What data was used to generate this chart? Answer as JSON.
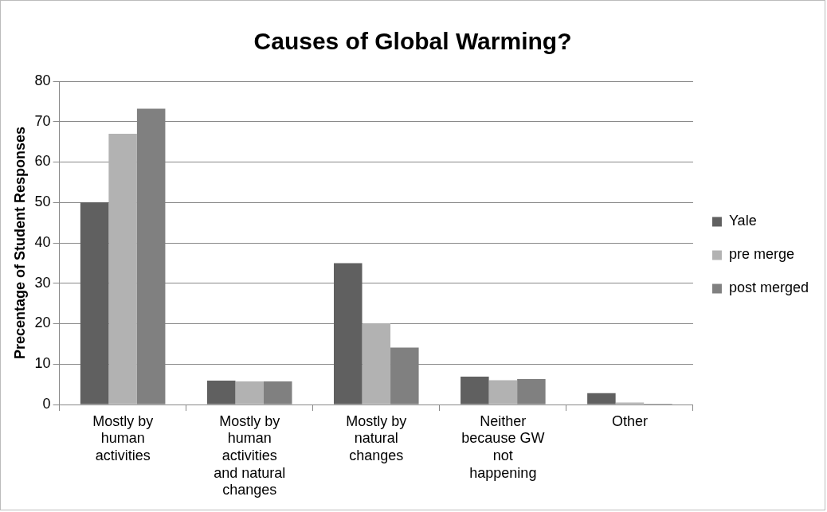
{
  "chart_data": {
    "type": "bar",
    "title": "Causes of Global Warming?",
    "ylabel": "Precentage of Student Responses",
    "categories": [
      "Mostly by human activities",
      "Mostly by human activities and natural changes",
      "Mostly by natural changes",
      "Neither because GW not happening",
      "Other"
    ],
    "series": [
      {
        "name": "Yale",
        "color": "#606060",
        "values": [
          50,
          5.9,
          35,
          6.9,
          2.8
        ]
      },
      {
        "name": "pre merge",
        "color": "#b2b2b2",
        "values": [
          67,
          5.7,
          20.1,
          6,
          0.5
        ]
      },
      {
        "name": "post merged",
        "color": "#808080",
        "values": [
          73.2,
          5.7,
          14.1,
          6.3,
          0.2
        ]
      }
    ],
    "ylim": [
      0,
      80
    ],
    "yticks": [
      0,
      10,
      20,
      30,
      40,
      50,
      60,
      70,
      80
    ],
    "grid": "y",
    "legend": "right"
  }
}
